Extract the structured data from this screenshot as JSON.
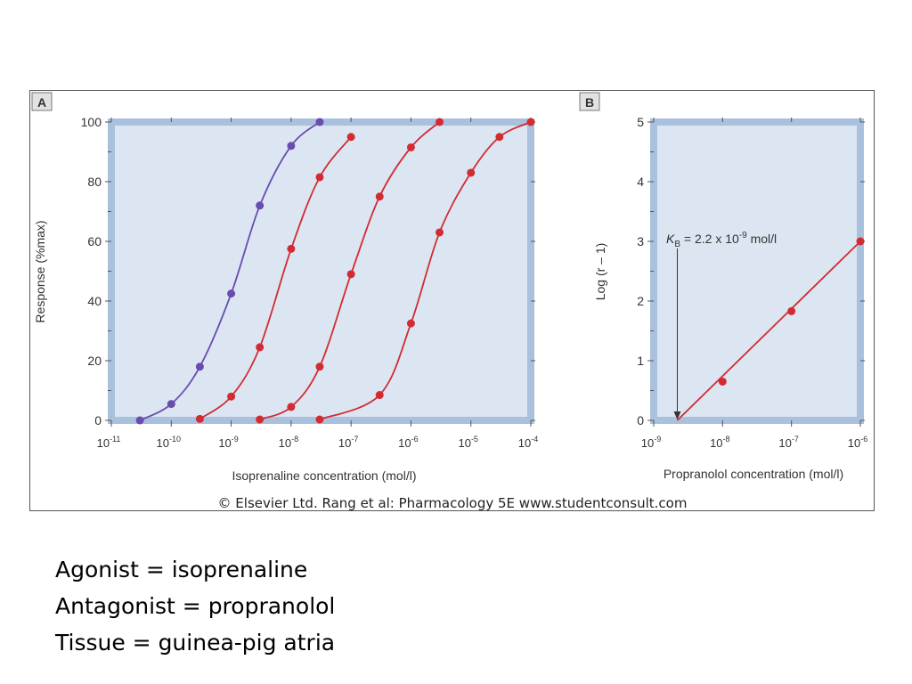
{
  "copyright": "© Elsevier Ltd. Rang et al: Pharmacology 5E www.studentconsult.com",
  "notes": [
    "Agonist = isoprenaline",
    "Antagonist = propranolol",
    "Tissue = guinea-pig atria"
  ],
  "colors": {
    "plot_background": "#dce6f3",
    "plot_border": "#a9c1dc",
    "agonist_series": "#6a4caf",
    "antagonist_series": "#d22b32"
  },
  "chart_data": [
    {
      "panel": "A",
      "type": "line",
      "xlabel": "Isoprenaline concentration (mol/l)",
      "ylabel": "Response (%max)",
      "x_scale": "log",
      "xlim": [
        1e-11,
        0.0001
      ],
      "ylim": [
        0,
        100
      ],
      "x_ticks": [
        {
          "value": 1e-11,
          "base": "10",
          "exp": "-11"
        },
        {
          "value": 1e-10,
          "base": "10",
          "exp": "-10"
        },
        {
          "value": 1e-09,
          "base": "10",
          "exp": "-9"
        },
        {
          "value": 1e-08,
          "base": "10",
          "exp": "-8"
        },
        {
          "value": 1e-07,
          "base": "10",
          "exp": "-7"
        },
        {
          "value": 1e-06,
          "base": "10",
          "exp": "-6"
        },
        {
          "value": 1e-05,
          "base": "10",
          "exp": "-5"
        },
        {
          "value": 0.0001,
          "base": "10",
          "exp": "-4"
        }
      ],
      "y_ticks": [
        "0",
        "20",
        "40",
        "60",
        "80",
        "100"
      ],
      "series": [
        {
          "color": "#6a4caf",
          "x": [
            3e-11,
            1e-10,
            3e-10,
            1e-09,
            3e-09,
            1e-08,
            3e-08
          ],
          "y": [
            0,
            5.5,
            18,
            42.5,
            72,
            92,
            100
          ]
        },
        {
          "color": "#d22b32",
          "x": [
            3e-10,
            1e-09,
            3e-09,
            1e-08,
            3e-08,
            1e-07
          ],
          "y": [
            0.5,
            8,
            24.5,
            57.5,
            81.5,
            95
          ]
        },
        {
          "color": "#d22b32",
          "x": [
            3e-09,
            1e-08,
            3e-08,
            1e-07,
            3e-07,
            1e-06,
            3e-06
          ],
          "y": [
            0.3,
            4.5,
            18,
            49,
            75,
            91.5,
            100
          ]
        },
        {
          "color": "#d22b32",
          "x": [
            3e-08,
            3e-07,
            1e-06,
            3e-06,
            1e-05,
            3e-05,
            0.0001
          ],
          "y": [
            0.3,
            8.5,
            32.5,
            63,
            83,
            95,
            100
          ]
        }
      ]
    },
    {
      "panel": "B",
      "type": "line",
      "xlabel": "Propranolol concentration (mol/l)",
      "ylabel": "Log (r – 1)",
      "x_scale": "log",
      "xlim": [
        1e-09,
        1e-06
      ],
      "ylim": [
        0,
        5
      ],
      "x_ticks": [
        {
          "value": 1e-09,
          "base": "10",
          "exp": "-9"
        },
        {
          "value": 1e-08,
          "base": "10",
          "exp": "-8"
        },
        {
          "value": 1e-07,
          "base": "10",
          "exp": "-7"
        },
        {
          "value": 1e-06,
          "base": "10",
          "exp": "-6"
        }
      ],
      "y_ticks": [
        "0",
        "1",
        "2",
        "3",
        "4",
        "5"
      ],
      "series": [
        {
          "color": "#d22b32",
          "x": [
            1e-08,
            1e-07,
            1e-06
          ],
          "y": [
            0.65,
            1.83,
            3.0
          ]
        }
      ],
      "fit_line_x_intercept": 2.2e-09,
      "annotation": {
        "k": "K",
        "sub": "B",
        "text": " = 2.2 x 10",
        "exp": "-9",
        "unit": " mol/l",
        "x_value": 2.2e-09
      }
    }
  ]
}
